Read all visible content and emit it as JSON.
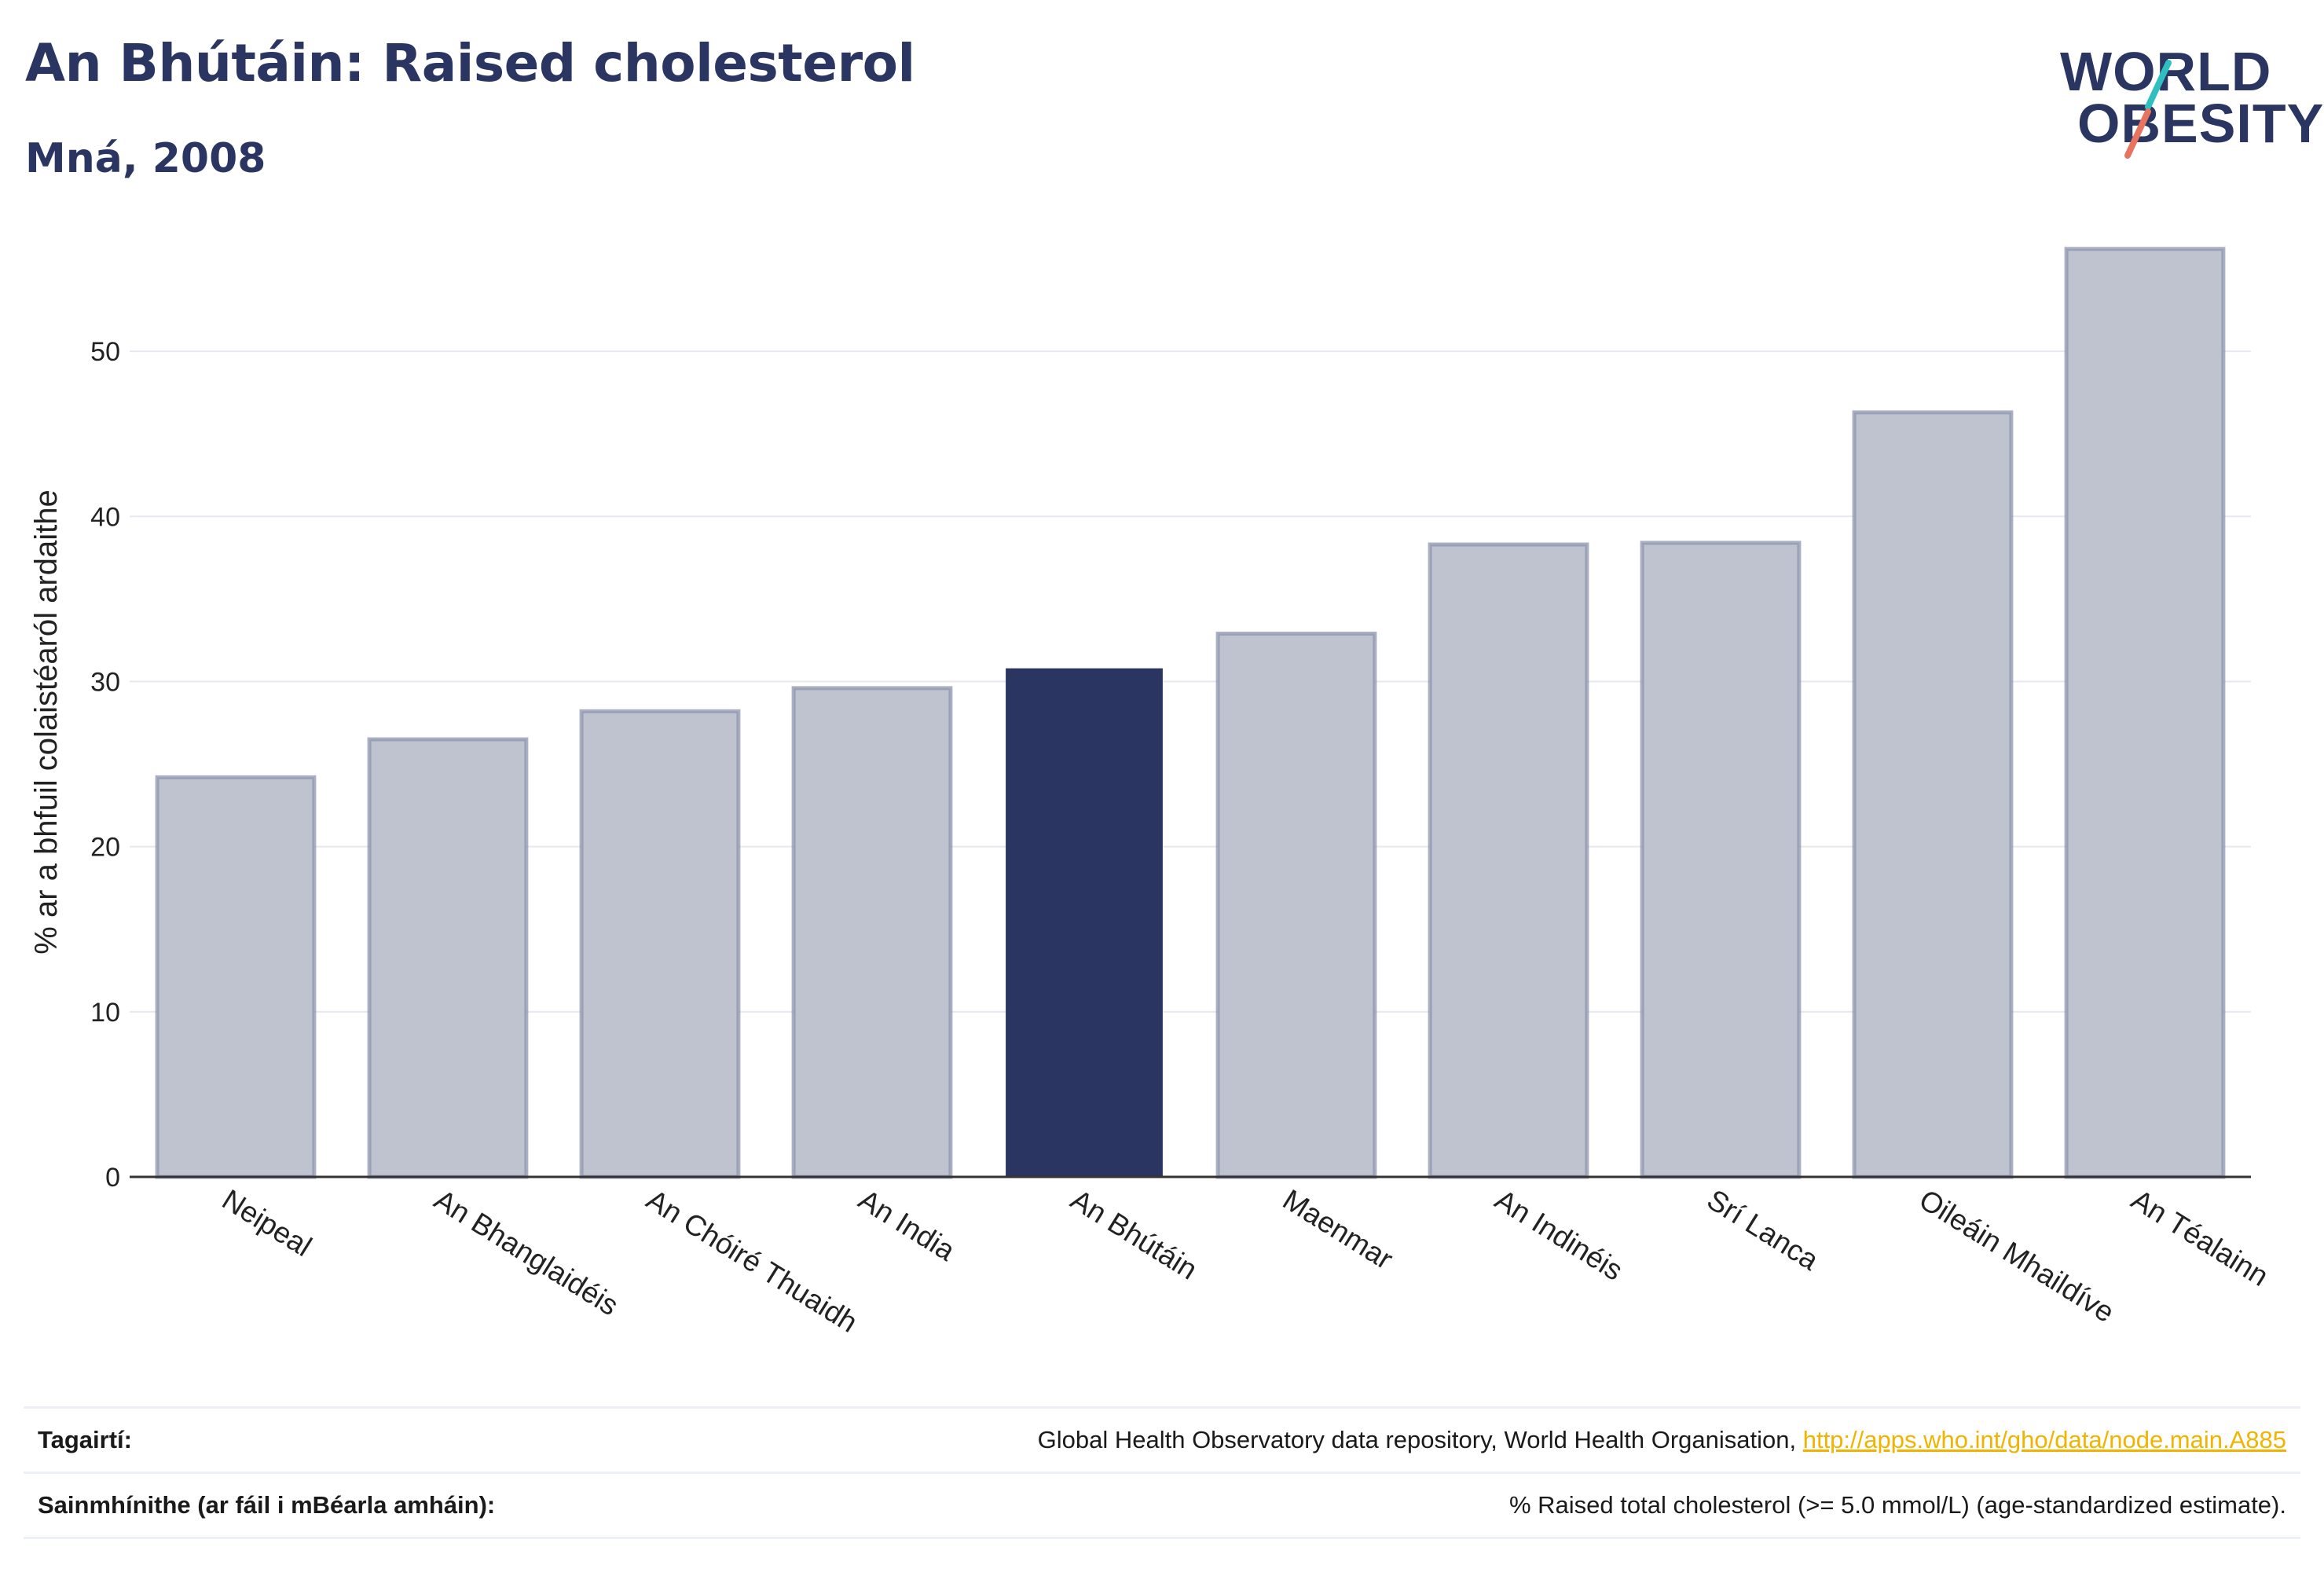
{
  "header": {
    "title": "An Bhútáin: Raised cholesterol",
    "subtitle": "Mná, 2008"
  },
  "logo": {
    "line1": "WORLD",
    "line2": "OBESITY",
    "accent_teal": "#2fbfc1",
    "accent_coral": "#e8735f"
  },
  "colors": {
    "highlight": "#2b3561",
    "bar_fill": "#bfc3d0",
    "bar_stroke": "#8e94ad",
    "grid": "#e6e8ef",
    "axis": "#333333"
  },
  "chart_data": {
    "type": "bar",
    "ylabel": "% ar a bhfuil colaistéaról ardaithe",
    "ylim": [
      0,
      57
    ],
    "yticks": [
      0,
      10,
      20,
      30,
      40,
      50
    ],
    "grid": true,
    "highlight": "An Bhútáin",
    "categories": [
      "Neipeal",
      "An Bhanglaidéis",
      "An Chóiré Thuaidh",
      "An India",
      "An Bhútáin",
      "Maenmar",
      "An Indinéis",
      "Srí Lanca",
      "Oileáin Mhaildíve",
      "An Téalainn"
    ],
    "values": [
      24.2,
      26.5,
      28.2,
      29.6,
      30.8,
      32.9,
      38.3,
      38.4,
      46.3,
      56.2
    ]
  },
  "references": {
    "source_label": "Tagairtí:",
    "source_text": "Global Health Observatory data repository, World Health Organisation, ",
    "source_link": "http://apps.who.int/gho/data/node.main.A885",
    "definition_label": "Sainmhínithe (ar fáil i mBéarla amháin):",
    "definition_text": "% Raised total cholesterol (>= 5.0 mmol/L) (age-standardized estimate)."
  }
}
